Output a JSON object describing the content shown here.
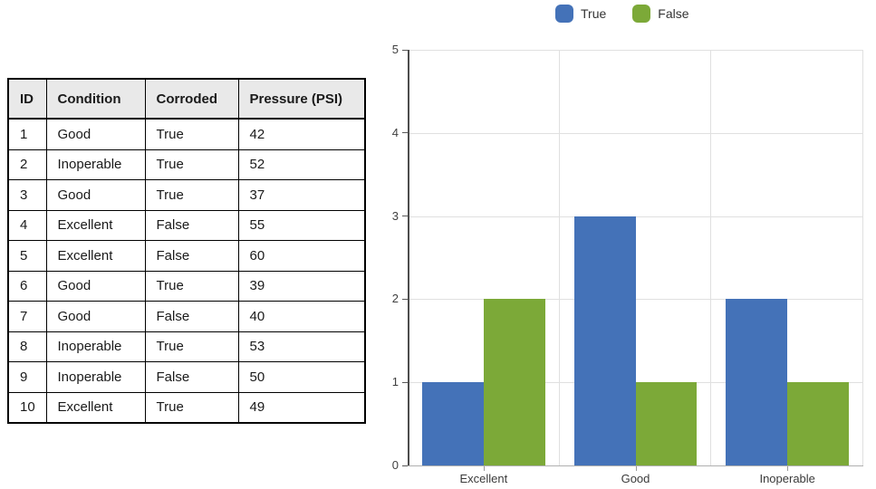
{
  "table": {
    "columns": [
      "ID",
      "Condition",
      "Corroded",
      "Pressure (PSI)"
    ],
    "rows": [
      [
        "1",
        "Good",
        "True",
        "42"
      ],
      [
        "2",
        "Inoperable",
        "True",
        "52"
      ],
      [
        "3",
        "Good",
        "True",
        "37"
      ],
      [
        "4",
        "Excellent",
        "False",
        "55"
      ],
      [
        "5",
        "Excellent",
        "False",
        "60"
      ],
      [
        "6",
        "Good",
        "True",
        "39"
      ],
      [
        "7",
        "Good",
        "False",
        "40"
      ],
      [
        "8",
        "Inoperable",
        "True",
        "53"
      ],
      [
        "9",
        "Inoperable",
        "False",
        "50"
      ],
      [
        "10",
        "Excellent",
        "True",
        "49"
      ]
    ]
  },
  "chart_data": {
    "type": "bar",
    "title": "",
    "categories": [
      "Excellent",
      "Good",
      "Inoperable"
    ],
    "series": [
      {
        "name": "True",
        "color": "#4472b8",
        "values": [
          1,
          3,
          2
        ]
      },
      {
        "name": "False",
        "color": "#7ca938",
        "values": [
          2,
          1,
          1
        ]
      }
    ],
    "xlabel": "",
    "ylabel": "",
    "ylim": [
      0,
      5
    ],
    "yticks": [
      0,
      1,
      2,
      3,
      4,
      5
    ],
    "grid": true,
    "legend_position": "top-center"
  },
  "colors": {
    "series_true": "#4472b8",
    "series_false": "#7ca938",
    "gridline": "#e0e0e0",
    "y_axis": "#4d4d4d",
    "x_axis": "#b0b0b0",
    "table_header_bg": "#e9e9e9",
    "table_border": "#000000"
  }
}
